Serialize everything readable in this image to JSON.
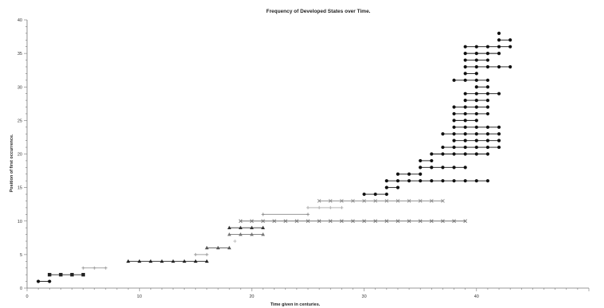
{
  "chart_data": {
    "type": "line",
    "title": "Frequency of Developed States over Time.",
    "xlabel": "Time given in centuries.",
    "ylabel": "Position of first occurrence.",
    "xlim": [
      0,
      50
    ],
    "ylim": [
      0,
      40
    ],
    "xticks": [
      "0",
      "10",
      "20",
      "30",
      "40"
    ],
    "yticks": [
      "0",
      "5",
      "10",
      "15",
      "20",
      "25",
      "30",
      "35",
      "40"
    ],
    "grid": false,
    "legend": "none",
    "series": [
      {
        "y": 1,
        "x": [
          1,
          2
        ],
        "marker": "dot",
        "color": "#111111"
      },
      {
        "y": 2,
        "x": [
          2,
          3,
          4,
          5
        ],
        "marker": "square",
        "color": "#222222"
      },
      {
        "y": 3,
        "x": [
          5,
          6,
          7
        ],
        "marker": "plus",
        "color": "#999999"
      },
      {
        "y": 4,
        "x": [
          9,
          10,
          11,
          12,
          13,
          14,
          15,
          16
        ],
        "marker": "triangle",
        "color": "#222222"
      },
      {
        "y": 5,
        "x": [
          15,
          16
        ],
        "marker": "plus",
        "color": "#999999"
      },
      {
        "y": 6,
        "x": [
          16,
          17,
          18
        ],
        "marker": "triangle",
        "color": "#555555"
      },
      {
        "y": 7,
        "x": [
          18.5
        ],
        "marker": "plus",
        "color": "#bbbbbb"
      },
      {
        "y": 8,
        "x": [
          18,
          19,
          20,
          21
        ],
        "marker": "triangle",
        "color": "#777777"
      },
      {
        "y": 9,
        "x": [
          18,
          19,
          20,
          21
        ],
        "marker": "triangle",
        "color": "#333333"
      },
      {
        "y": 10,
        "x": [
          19,
          20,
          21,
          22,
          23,
          24,
          25,
          26,
          27,
          28,
          29,
          30,
          31,
          32,
          33,
          34,
          35,
          36,
          37,
          38,
          39
        ],
        "marker": "x",
        "color": "#777777"
      },
      {
        "y": 11,
        "x": [
          21,
          25
        ],
        "marker": "plus",
        "color": "#888888"
      },
      {
        "y": 12,
        "x": [
          25,
          26,
          27,
          28
        ],
        "marker": "plus",
        "color": "#aaaaaa"
      },
      {
        "y": 13,
        "x": [
          26,
          27,
          28,
          29,
          30,
          31,
          32,
          33,
          34,
          35,
          36,
          37
        ],
        "marker": "x",
        "color": "#888888"
      },
      {
        "y": 14,
        "x": [
          30,
          31,
          32
        ],
        "marker": "dot",
        "color": "#111111"
      },
      {
        "y": 15,
        "x": [
          32,
          33
        ],
        "marker": "dot",
        "color": "#111111"
      },
      {
        "y": 16,
        "x": [
          32,
          33,
          34,
          35,
          36,
          37,
          38,
          39,
          40,
          41
        ],
        "marker": "dot",
        "color": "#111111"
      },
      {
        "y": 17,
        "x": [
          33,
          34,
          35
        ],
        "marker": "dot",
        "color": "#111111"
      },
      {
        "y": 18,
        "x": [
          35,
          36,
          37,
          38,
          39
        ],
        "marker": "dot",
        "color": "#111111"
      },
      {
        "y": 19,
        "x": [
          35,
          36
        ],
        "marker": "dot",
        "color": "#111111"
      },
      {
        "y": 20,
        "x": [
          36,
          37,
          38,
          39,
          40,
          41
        ],
        "marker": "dot",
        "color": "#111111"
      },
      {
        "y": 21,
        "x": [
          37,
          38,
          39,
          40,
          41,
          42
        ],
        "marker": "dot",
        "color": "#111111"
      },
      {
        "y": 22,
        "x": [
          38,
          39,
          40,
          41,
          42
        ],
        "marker": "dot",
        "color": "#111111"
      },
      {
        "y": 23,
        "x": [
          37,
          38,
          39,
          40,
          41,
          42
        ],
        "marker": "dot",
        "color": "#111111"
      },
      {
        "y": 24,
        "x": [
          38,
          39,
          40,
          41,
          42
        ],
        "marker": "dot",
        "color": "#111111"
      },
      {
        "y": 25,
        "x": [
          38,
          39,
          40
        ],
        "marker": "dot",
        "color": "#111111"
      },
      {
        "y": 26,
        "x": [
          38,
          39,
          40,
          41
        ],
        "marker": "dot",
        "color": "#111111"
      },
      {
        "y": 27,
        "x": [
          38,
          39,
          40,
          41
        ],
        "marker": "dot",
        "color": "#111111"
      },
      {
        "y": 28,
        "x": [
          39,
          40,
          41
        ],
        "marker": "dot",
        "color": "#111111"
      },
      {
        "y": 29,
        "x": [
          39,
          40,
          41,
          42
        ],
        "marker": "dot",
        "color": "#111111"
      },
      {
        "y": 30,
        "x": [
          40,
          41
        ],
        "marker": "dot",
        "color": "#111111"
      },
      {
        "y": 31,
        "x": [
          38,
          39,
          40,
          41
        ],
        "marker": "dot",
        "color": "#111111"
      },
      {
        "y": 32,
        "x": [
          39,
          40
        ],
        "marker": "dot",
        "color": "#111111"
      },
      {
        "y": 33,
        "x": [
          39,
          40,
          41,
          42,
          43
        ],
        "marker": "dot",
        "color": "#111111"
      },
      {
        "y": 34,
        "x": [
          39,
          40,
          41
        ],
        "marker": "dot",
        "color": "#111111"
      },
      {
        "y": 35,
        "x": [
          39,
          40,
          41,
          42
        ],
        "marker": "dot",
        "color": "#111111"
      },
      {
        "y": 36,
        "x": [
          39,
          40,
          41,
          42,
          43
        ],
        "marker": "dot",
        "color": "#111111"
      },
      {
        "y": 37,
        "x": [
          42,
          43
        ],
        "marker": "dot",
        "color": "#111111"
      },
      {
        "y": 38,
        "x": [
          42
        ],
        "marker": "dot",
        "color": "#111111"
      }
    ]
  }
}
